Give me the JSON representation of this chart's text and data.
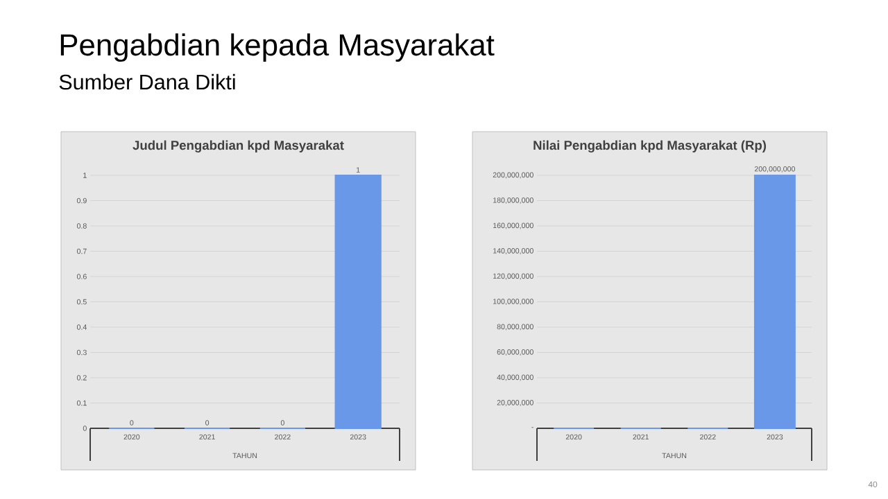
{
  "chart_data": [
    {
      "type": "bar",
      "title": "Judul Pengabdian kpd Masyarakat",
      "xlabel": "TAHUN",
      "categories": [
        "2020",
        "2021",
        "2022",
        "2023"
      ],
      "values": [
        0,
        0,
        0,
        1
      ],
      "color": "#6a98e8",
      "ylim": [
        0,
        1
      ],
      "yticks": [
        0,
        0.1,
        0.2,
        0.3,
        0.4,
        0.5,
        0.6,
        0.7,
        0.8,
        0.9,
        1
      ],
      "grid": "y",
      "data_labels": true,
      "annotations": [
        "Pengabdian kepada Masyarakat",
        "Sumber Dana Dikti"
      ]
    },
    {
      "type": "bar",
      "title": "Nilai Pengabdian kpd Masyarakat (Rp)",
      "xlabel": "TAHUN",
      "categories": [
        "2020",
        "2021",
        "2022",
        "2023"
      ],
      "values": [
        0,
        0,
        0,
        200000000
      ],
      "value_labels": [
        null,
        null,
        null,
        "200,000,000"
      ],
      "color": "#6a98e8",
      "ylim": [
        0,
        200000000
      ],
      "yticks": [
        {
          "value": 0,
          "label": "-"
        },
        {
          "value": 20000000,
          "label": "20,000,000"
        },
        {
          "value": 40000000,
          "label": "40,000,000"
        },
        {
          "value": 60000000,
          "label": "60,000,000"
        },
        {
          "value": 80000000,
          "label": "80,000,000"
        },
        {
          "value": 100000000,
          "label": "100,000,000"
        },
        {
          "value": 120000000,
          "label": "120,000,000"
        },
        {
          "value": 140000000,
          "label": "140,000,000"
        },
        {
          "value": 160000000,
          "label": "160,000,000"
        },
        {
          "value": 180000000,
          "label": "180,000,000"
        },
        {
          "value": 200000000,
          "label": "200,000,000"
        }
      ],
      "grid": "y",
      "annotations": [
        "40"
      ]
    }
  ]
}
